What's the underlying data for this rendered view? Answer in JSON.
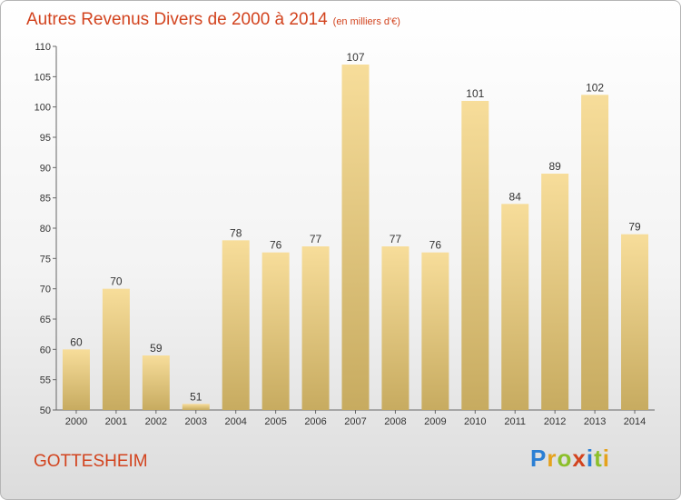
{
  "title": "Autres Revenus Divers de 2000 à 2014",
  "title_unit": "(en milliers d'€)",
  "city": "GOTTESHEIM",
  "logo": {
    "p": "P",
    "r": "r",
    "o": "o",
    "x": "x",
    "i1": "i",
    "t": "t",
    "i2": "i"
  },
  "colors": {
    "bar_light": "#f7dd9a",
    "bar_dark": "#c7ab60",
    "text_accent": "#d2431e"
  },
  "chart_data": {
    "type": "bar",
    "title": "Autres Revenus Divers de 2000 à 2014",
    "xlabel": "",
    "ylabel": "",
    "ylim": [
      50,
      110
    ],
    "yticks": [
      50,
      55,
      60,
      65,
      70,
      75,
      80,
      85,
      90,
      95,
      100,
      105,
      110
    ],
    "grid": false,
    "categories": [
      "2000",
      "2001",
      "2002",
      "2003",
      "2004",
      "2005",
      "2006",
      "2007",
      "2008",
      "2009",
      "2010",
      "2011",
      "2012",
      "2013",
      "2014"
    ],
    "values": [
      60,
      70,
      59,
      51,
      78,
      76,
      77,
      107,
      77,
      76,
      101,
      84,
      89,
      102,
      79
    ]
  }
}
